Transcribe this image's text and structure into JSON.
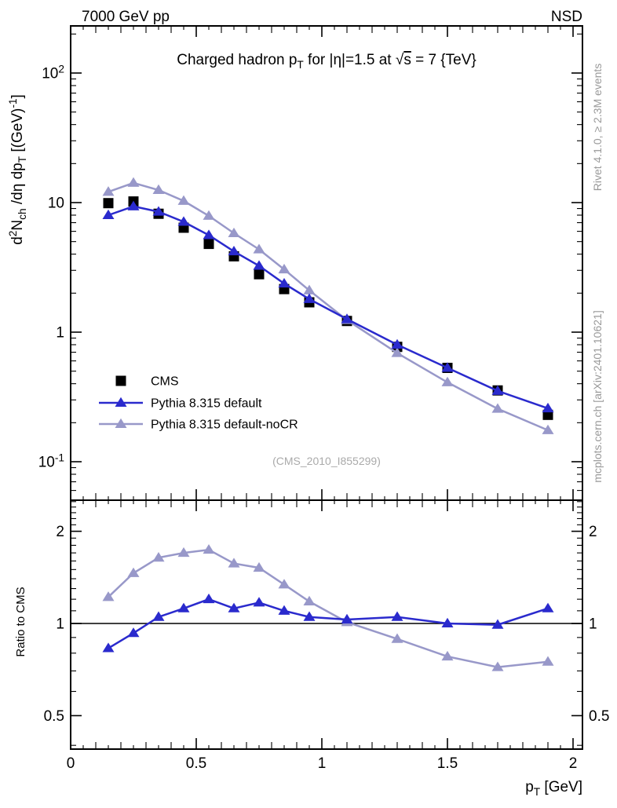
{
  "header": {
    "left": "7000 GeV pp",
    "right": "NSD"
  },
  "title_segments": [
    {
      "t": "Charged hadron p"
    },
    {
      "t": "T",
      "s": "sub"
    },
    {
      "t": " for |η|=1.5 at "
    },
    {
      "t": "√"
    },
    {
      "t": "s",
      "s": "over"
    },
    {
      "t": " = 7 {TeV}"
    }
  ],
  "watermark": "(CMS_2010_I855299)",
  "right_margin": {
    "top": "Rivet 4.1.0, ≥ 2.3M events",
    "bottom": "mcplots.cern.ch [arXiv:2401.10621]"
  },
  "colors": {
    "cms": "#000000",
    "pythia_default": "#2a2acd",
    "pythia_nocr": "#9898c9",
    "frame": "#000000",
    "margin_text": "#999999",
    "watermark_text": "#aaaaaa"
  },
  "legend": {
    "items": [
      {
        "label": "CMS",
        "marker": "square",
        "color": "#000000",
        "line": false
      },
      {
        "label": "Pythia 8.315 default",
        "marker": "triangle",
        "color": "#2a2acd",
        "line": true
      },
      {
        "label": "Pythia 8.315 default-noCR",
        "marker": "triangle",
        "color": "#9898c9",
        "line": true
      }
    ]
  },
  "axes": {
    "x": {
      "label_segments": [
        {
          "t": "p"
        },
        {
          "t": "T",
          "s": "sub"
        },
        {
          "t": " [GeV]"
        }
      ],
      "ticks": [
        {
          "v": 0,
          "segs": [
            {
              "t": "0"
            }
          ]
        },
        {
          "v": 0.5,
          "segs": [
            {
              "t": "0.5"
            }
          ]
        },
        {
          "v": 1,
          "segs": [
            {
              "t": "1"
            }
          ]
        },
        {
          "v": 1.5,
          "segs": [
            {
              "t": "1.5"
            }
          ]
        },
        {
          "v": 2,
          "segs": [
            {
              "t": "2"
            }
          ]
        }
      ]
    },
    "y_main": {
      "label_segments": [
        {
          "t": "d"
        },
        {
          "t": "2",
          "s": "sup"
        },
        {
          "t": "N"
        },
        {
          "t": "ch",
          "s": "sub"
        },
        {
          "t": " /dη  dp"
        },
        {
          "t": "T",
          "s": "sub"
        },
        {
          "t": " [(GeV)"
        },
        {
          "t": "-1",
          "s": "sup"
        },
        {
          "t": "]"
        }
      ],
      "ticks": [
        {
          "v": 100,
          "segs": [
            {
              "t": "10"
            },
            {
              "t": "2",
              "s": "sup"
            }
          ]
        },
        {
          "v": 10,
          "segs": [
            {
              "t": "10"
            }
          ]
        },
        {
          "v": 1,
          "segs": [
            {
              "t": "1"
            }
          ]
        },
        {
          "v": 0.1,
          "segs": [
            {
              "t": "10"
            },
            {
              "t": "-1",
              "s": "sup"
            }
          ]
        }
      ]
    },
    "y_ratio": {
      "label": "Ratio to CMS",
      "ticks": [
        {
          "v": 2,
          "segs": [
            {
              "t": "2"
            }
          ]
        },
        {
          "v": 1,
          "segs": [
            {
              "t": "1"
            }
          ]
        },
        {
          "v": 0.5,
          "segs": [
            {
              "t": "0.5"
            }
          ]
        }
      ]
    }
  },
  "chart_data": {
    "type": "line",
    "title": "Charged hadron pT for |eta|=1.5 at sqrt(s) = 7 TeV",
    "xlabel": "pT [GeV]",
    "x_values": [
      0.15,
      0.25,
      0.35,
      0.45,
      0.55,
      0.65,
      0.75,
      0.85,
      0.95,
      1.1,
      1.3,
      1.5,
      1.7,
      1.9
    ],
    "panels": [
      {
        "id": "spectrum",
        "ylabel": "d2Nch/deta dpT [(GeV)^-1]",
        "yscale": "log",
        "ylim": [
          0.05,
          231
        ],
        "xlim": [
          0,
          2.04
        ],
        "series": [
          {
            "name": "CMS",
            "marker": "square",
            "color": "#000000",
            "draw_line": false,
            "values": [
              9.9,
              10.2,
              8.2,
              6.4,
              4.8,
              3.85,
              2.8,
              2.15,
              1.7,
              1.22,
              0.77,
              0.53,
              0.355,
              0.23
            ]
          },
          {
            "name": "Pythia 8.315 default-noCR",
            "marker": "triangle",
            "color": "#9898c9",
            "draw_line": true,
            "values": [
              12.1,
              14.2,
              12.5,
              10.3,
              7.9,
              5.8,
              4.35,
              3.05,
              2.1,
              1.24,
              0.69,
              0.41,
              0.256,
              0.175
            ]
          },
          {
            "name": "Pythia 8.315 default",
            "marker": "triangle",
            "color": "#2a2acd",
            "draw_line": true,
            "values": [
              8.0,
              9.35,
              8.5,
              7.1,
              5.6,
              4.2,
              3.25,
              2.37,
              1.8,
              1.26,
              0.8,
              0.53,
              0.352,
              0.258
            ]
          }
        ]
      },
      {
        "id": "ratio",
        "ylabel": "Ratio to CMS",
        "yscale": "log",
        "ylim": [
          0.39,
          2.53
        ],
        "ref_line": 1,
        "series": [
          {
            "name": "Pythia 8.315 default-noCR",
            "marker": "triangle",
            "color": "#9898c9",
            "draw_line": true,
            "values": [
              1.22,
              1.46,
              1.64,
              1.7,
              1.74,
              1.57,
              1.52,
              1.34,
              1.18,
              1.01,
              0.89,
              0.78,
              0.72,
              0.75
            ]
          },
          {
            "name": "Pythia 8.315 default",
            "marker": "triangle",
            "color": "#2a2acd",
            "draw_line": true,
            "values": [
              0.83,
              0.93,
              1.05,
              1.12,
              1.2,
              1.12,
              1.17,
              1.1,
              1.05,
              1.03,
              1.05,
              1.0,
              0.99,
              1.12
            ]
          }
        ]
      }
    ]
  }
}
